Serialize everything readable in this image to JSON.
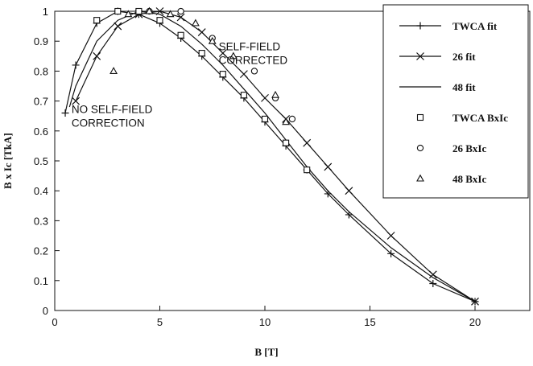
{
  "chart_data": {
    "type": "line",
    "title": "",
    "xlabel": "B [T]",
    "ylabel": "B x Ic [TkA]",
    "xlim": [
      0,
      20
    ],
    "ylim": [
      0,
      1
    ],
    "xticks": [
      0,
      5,
      10,
      15,
      20
    ],
    "yticks": [
      0,
      0.1,
      0.2,
      0.3,
      0.4,
      0.5,
      0.6,
      0.7,
      0.8,
      0.9,
      1
    ],
    "xtick_labels": [
      "0",
      "5",
      "10",
      "15",
      "20"
    ],
    "ytick_labels": [
      "0",
      "0.1",
      "0.2",
      "0.3",
      "0.4",
      "0.5",
      "0.6",
      "0.7",
      "0.8",
      "0.9",
      "1"
    ],
    "grid": false,
    "legend_position": "top-right",
    "series": [
      {
        "name": "TWCA fit",
        "kind": "line",
        "marker": "plus",
        "x": [
          0.5,
          1,
          2,
          3,
          4,
          5,
          6,
          7,
          8,
          9,
          10,
          11,
          12,
          13,
          14,
          16,
          18,
          20
        ],
        "y": [
          0.66,
          0.82,
          0.96,
          1.0,
          0.99,
          0.96,
          0.91,
          0.85,
          0.78,
          0.71,
          0.63,
          0.55,
          0.47,
          0.39,
          0.32,
          0.19,
          0.09,
          0.03
        ]
      },
      {
        "name": "26 fit",
        "kind": "line",
        "marker": "x",
        "x": [
          1,
          2,
          3,
          4,
          5,
          6,
          7,
          8,
          9,
          10,
          11,
          12,
          13,
          14,
          16,
          18,
          20
        ],
        "y": [
          0.7,
          0.85,
          0.95,
          0.99,
          1.0,
          0.98,
          0.93,
          0.86,
          0.79,
          0.71,
          0.64,
          0.56,
          0.48,
          0.4,
          0.25,
          0.12,
          0.03
        ]
      },
      {
        "name": "48 fit",
        "kind": "line",
        "marker": "none",
        "x": [
          0.7,
          1,
          2,
          3,
          4,
          5,
          6,
          7,
          8,
          9,
          10,
          11,
          12,
          13,
          14,
          16,
          18,
          20
        ],
        "y": [
          0.68,
          0.75,
          0.9,
          0.97,
          1.0,
          0.99,
          0.95,
          0.89,
          0.82,
          0.74,
          0.66,
          0.57,
          0.48,
          0.4,
          0.33,
          0.21,
          0.11,
          0.03
        ]
      },
      {
        "name": "TWCA BxIc",
        "kind": "scatter",
        "marker": "square",
        "x": [
          2,
          3,
          4,
          5,
          6,
          7,
          8,
          9,
          10,
          11,
          12
        ],
        "y": [
          0.97,
          1.0,
          1.0,
          0.97,
          0.92,
          0.86,
          0.79,
          0.72,
          0.64,
          0.56,
          0.47
        ]
      },
      {
        "name": "26 BxIc",
        "kind": "scatter",
        "marker": "circle",
        "x": [
          4.5,
          6,
          7.5,
          9.5,
          10.5,
          11.3
        ],
        "y": [
          1.0,
          1.0,
          0.91,
          0.8,
          0.71,
          0.64
        ]
      },
      {
        "name": "48 BxIc",
        "kind": "scatter",
        "marker": "triangle",
        "x": [
          2.8,
          3.5,
          4.5,
          5.5,
          6.7,
          7.5,
          8.5,
          10.5,
          11
        ],
        "y": [
          0.8,
          0.99,
          1.0,
          0.99,
          0.96,
          0.9,
          0.85,
          0.72,
          0.63
        ]
      }
    ],
    "annotations": [
      {
        "lines": [
          "NO SELF-FIELD",
          "CORRECTION"
        ],
        "x": 0.8,
        "y": 0.66
      },
      {
        "lines": [
          "SELF-FIELD",
          "CORRECTED"
        ],
        "x": 7.8,
        "y": 0.87
      }
    ]
  }
}
